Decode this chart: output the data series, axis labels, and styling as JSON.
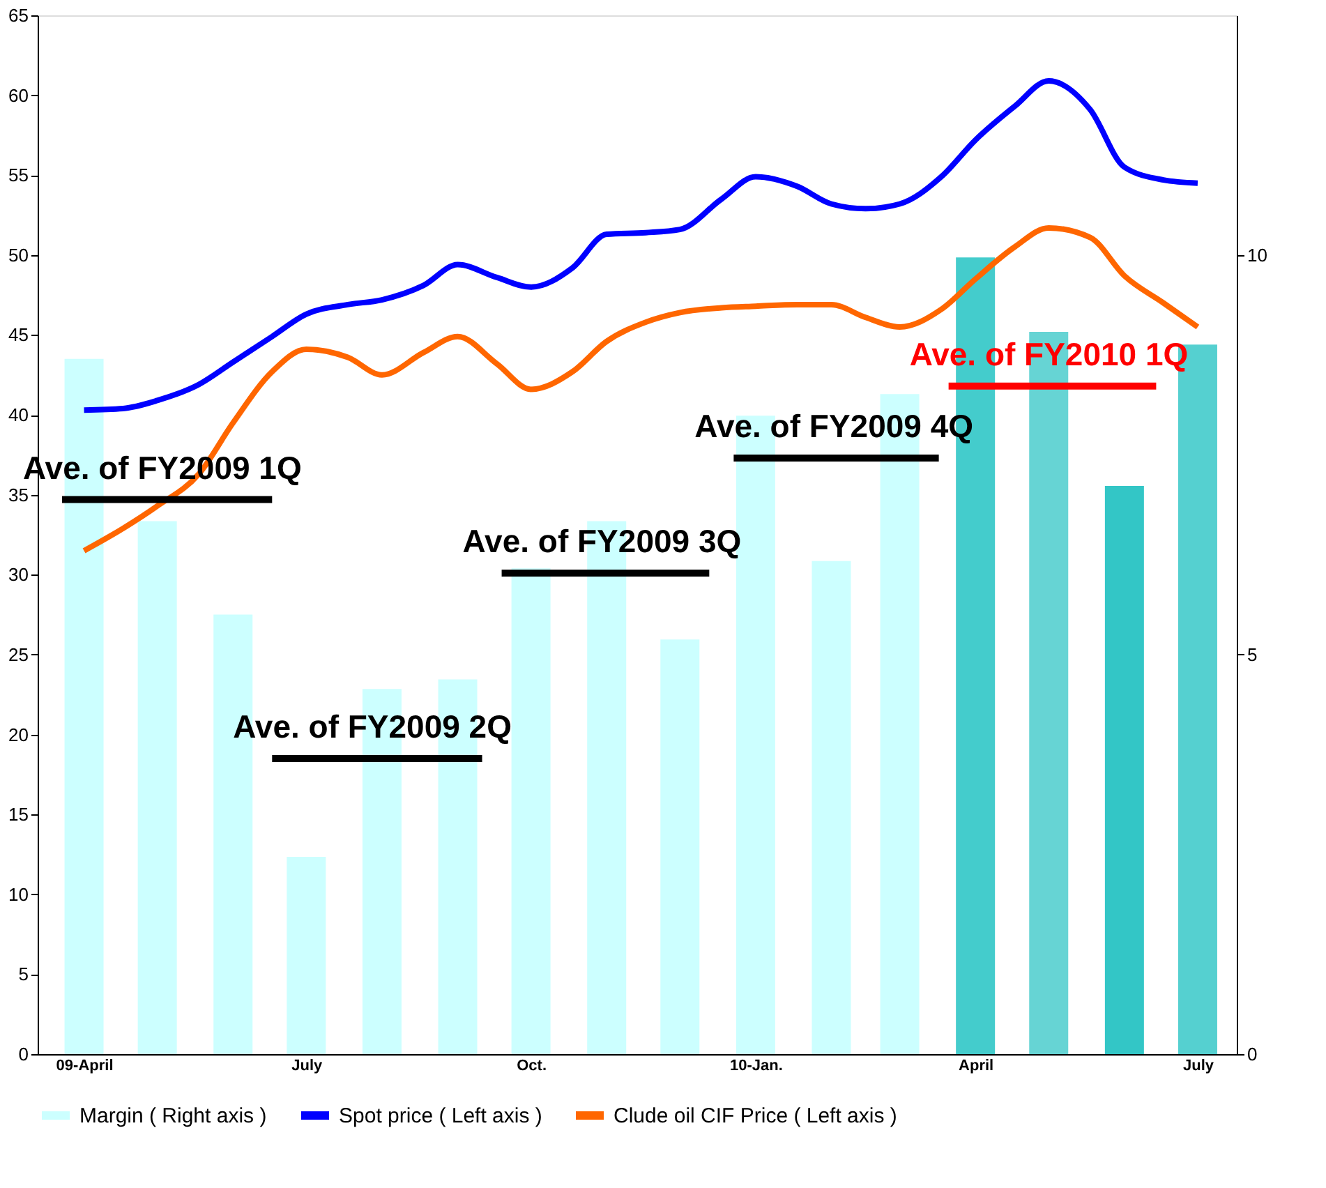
{
  "chart_data": {
    "type": "bar",
    "x": [
      "2009-04-15",
      "2009-05-15",
      "2009-06-15",
      "2009-07-15",
      "2009-08-15",
      "2009-09-15",
      "2009-10-15",
      "2009-11-15",
      "2009-12-15",
      "2010-01-15",
      "2010-02-15",
      "2010-03-15",
      "2010-04-15",
      "2010-05-15",
      "2010-06-15",
      "2010-07-15"
    ],
    "xlim": [
      "2009-03-27",
      "2010-07-31"
    ],
    "xticks": [
      {
        "value": "2009-04-15",
        "label": "09-April"
      },
      {
        "value": "2009-07-15",
        "label": "July"
      },
      {
        "value": "2009-10-15",
        "label": "Oct."
      },
      {
        "value": "2010-01-15",
        "label": "10-Jan."
      },
      {
        "value": "2010-04-15",
        "label": "April"
      },
      {
        "value": "2010-07-15",
        "label": "July"
      }
    ],
    "ylim": [
      0,
      65
    ],
    "yticks": [
      0,
      5,
      10,
      15,
      20,
      25,
      30,
      35,
      40,
      45,
      50,
      55,
      60,
      65
    ],
    "y2lim": [
      0,
      13
    ],
    "y2ticks": [
      0,
      5,
      10
    ],
    "legend": "bottom",
    "grid": false,
    "series": [
      {
        "name": "Margin ( Right axis )",
        "axis": "y2",
        "color": "#ccffff",
        "colors": [
          "#ccffff",
          "#ccffff",
          "#ccffff",
          "#ccffff",
          "#ccffff",
          "#ccffff",
          "#ccffff",
          "#ccffff",
          "#ccffff",
          "#ccffff",
          "#ccffff",
          "#ccffff",
          "#44cccc",
          "#66d4d4",
          "#33c6c6",
          "#55d0d0"
        ],
        "values": [
          8.7,
          6.67,
          5.5,
          2.47,
          4.57,
          4.69,
          6.08,
          6.67,
          5.19,
          7.99,
          6.17,
          8.26,
          9.97,
          9.04,
          7.11,
          8.88
        ]
      },
      {
        "name": "Spot price ( Left axis )",
        "type": "line",
        "color": "#0000ff",
        "x": [
          "2009-04-15",
          "2009-05-01",
          "2009-05-15",
          "2009-06-01",
          "2009-06-15",
          "2009-07-01",
          "2009-07-15",
          "2009-08-01",
          "2009-08-15",
          "2009-09-01",
          "2009-09-15",
          "2009-10-01",
          "2009-10-15",
          "2009-11-01",
          "2009-11-15",
          "2009-12-01",
          "2009-12-15",
          "2010-01-01",
          "2010-01-15",
          "2010-02-01",
          "2010-02-15",
          "2010-03-01",
          "2010-03-15",
          "2010-04-01",
          "2010-04-15",
          "2010-05-01",
          "2010-05-15",
          "2010-06-01",
          "2010-06-15",
          "2010-07-01",
          "2010-07-15"
        ],
        "values": [
          40.3,
          40.4,
          40.9,
          41.9,
          43.3,
          44.9,
          46.3,
          46.9,
          47.2,
          48.1,
          49.4,
          48.6,
          48.0,
          49.2,
          51.3,
          51.4,
          51.6,
          53.5,
          54.9,
          54.3,
          53.2,
          52.9,
          53.2,
          54.9,
          57.2,
          59.3,
          60.9,
          59.1,
          55.5,
          54.7,
          54.5
        ]
      },
      {
        "name": "Clude oil CIF Price ( Left axis )",
        "type": "line",
        "color": "#ff6600",
        "x": [
          "2009-04-15",
          "2009-05-01",
          "2009-05-15",
          "2009-06-01",
          "2009-06-15",
          "2009-07-01",
          "2009-07-15",
          "2009-08-01",
          "2009-08-15",
          "2009-09-01",
          "2009-09-15",
          "2009-10-01",
          "2009-10-15",
          "2009-11-01",
          "2009-11-15",
          "2009-12-01",
          "2009-12-15",
          "2010-01-01",
          "2010-01-15",
          "2010-02-01",
          "2010-02-15",
          "2010-03-01",
          "2010-03-15",
          "2010-04-01",
          "2010-04-15",
          "2010-05-01",
          "2010-05-15",
          "2010-06-01",
          "2010-06-15",
          "2010-07-01",
          "2010-07-15"
        ],
        "values": [
          31.5,
          32.9,
          34.3,
          36.3,
          39.5,
          42.7,
          44.1,
          43.6,
          42.5,
          43.9,
          44.9,
          43.2,
          41.6,
          42.7,
          44.6,
          45.8,
          46.4,
          46.7,
          46.8,
          46.9,
          46.9,
          46.1,
          45.5,
          46.6,
          48.5,
          50.5,
          51.7,
          51.1,
          48.7,
          47.0,
          45.5
        ]
      },
      {
        "name": "Ave. of  FY2009 1Q",
        "type": "line",
        "color": "#000000",
        "x": [
          "2009-04-06",
          "2009-07-01"
        ],
        "values": [
          34.7,
          34.7
        ]
      },
      {
        "name": "Ave. of  FY2009 2Q",
        "type": "line",
        "color": "#000000",
        "x": [
          "2009-07-01",
          "2009-09-25"
        ],
        "values": [
          18.5,
          18.5
        ]
      },
      {
        "name": "Ave. of FY2009 3Q",
        "type": "line",
        "color": "#000000",
        "x": [
          "2009-10-03",
          "2009-12-27"
        ],
        "values": [
          30.1,
          30.1
        ]
      },
      {
        "name": "Ave. of  FY2009 4Q",
        "type": "line",
        "color": "#000000",
        "x": [
          "2010-01-06",
          "2010-03-31"
        ],
        "values": [
          37.3,
          37.3
        ]
      },
      {
        "name": "Ave. of FY2010 1Q",
        "type": "line",
        "color": "#ff0000",
        "x": [
          "2010-04-04",
          "2010-06-28"
        ],
        "values": [
          41.8,
          41.8
        ]
      }
    ]
  }
}
